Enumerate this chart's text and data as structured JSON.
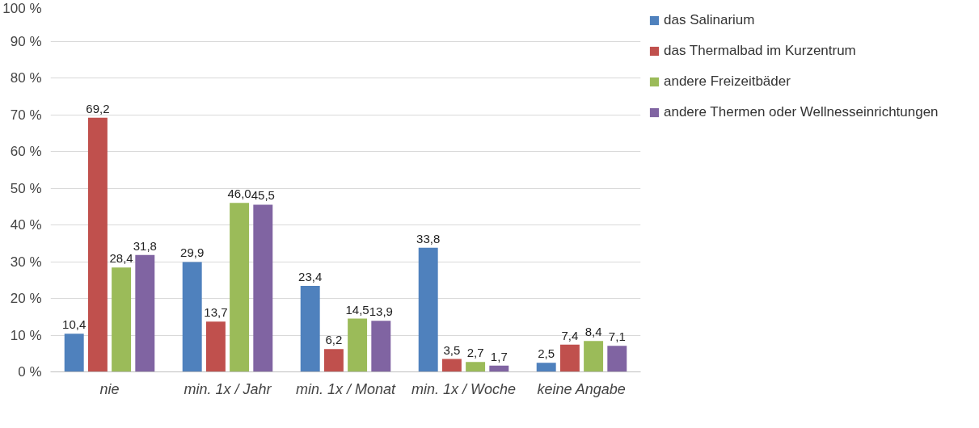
{
  "chart_data": {
    "type": "bar",
    "categories": [
      "nie",
      "min. 1x / Jahr",
      "min. 1x / Monat",
      "min. 1x / Woche",
      "keine Angabe"
    ],
    "series": [
      {
        "name": "das Salinarium",
        "color": "#4f81bd",
        "values": [
          10.4,
          29.9,
          23.4,
          33.8,
          2.5
        ],
        "value_labels": [
          "10,4",
          "29,9",
          "23,4",
          "33,8",
          "2,5"
        ]
      },
      {
        "name": "das Thermalbad im Kurzentrum",
        "color": "#c0504d",
        "values": [
          69.2,
          13.7,
          6.2,
          3.5,
          7.4
        ],
        "value_labels": [
          "69,2",
          "13,7",
          "6,2",
          "3,5",
          "7,4"
        ]
      },
      {
        "name": "andere Freizeitbäder",
        "color": "#9bbb59",
        "values": [
          28.4,
          46.0,
          14.5,
          2.7,
          8.4
        ],
        "value_labels": [
          "28,4",
          "46,0",
          "14,5",
          "2,7",
          "8,4"
        ]
      },
      {
        "name": "andere Thermen oder Wellnesseinrichtungen",
        "color": "#8064a2",
        "values": [
          31.8,
          45.5,
          13.9,
          1.7,
          7.1
        ],
        "value_labels": [
          "31,8",
          "45,5",
          "13,9",
          "1,7",
          "7,1"
        ]
      }
    ],
    "ylim": [
      0,
      100
    ],
    "yticks": [
      {
        "value": 0,
        "label": "0 %"
      },
      {
        "value": 10,
        "label": "10 %"
      },
      {
        "value": 20,
        "label": "20 %"
      },
      {
        "value": 30,
        "label": "30 %"
      },
      {
        "value": 40,
        "label": "40 %"
      },
      {
        "value": 50,
        "label": "50 %"
      },
      {
        "value": 60,
        "label": "60 %"
      },
      {
        "value": 70,
        "label": "70 %"
      },
      {
        "value": 80,
        "label": "80 %"
      },
      {
        "value": 90,
        "label": "90 %"
      },
      {
        "value": 100,
        "label": "100 %"
      }
    ],
    "grid": "y",
    "legend": "right"
  }
}
